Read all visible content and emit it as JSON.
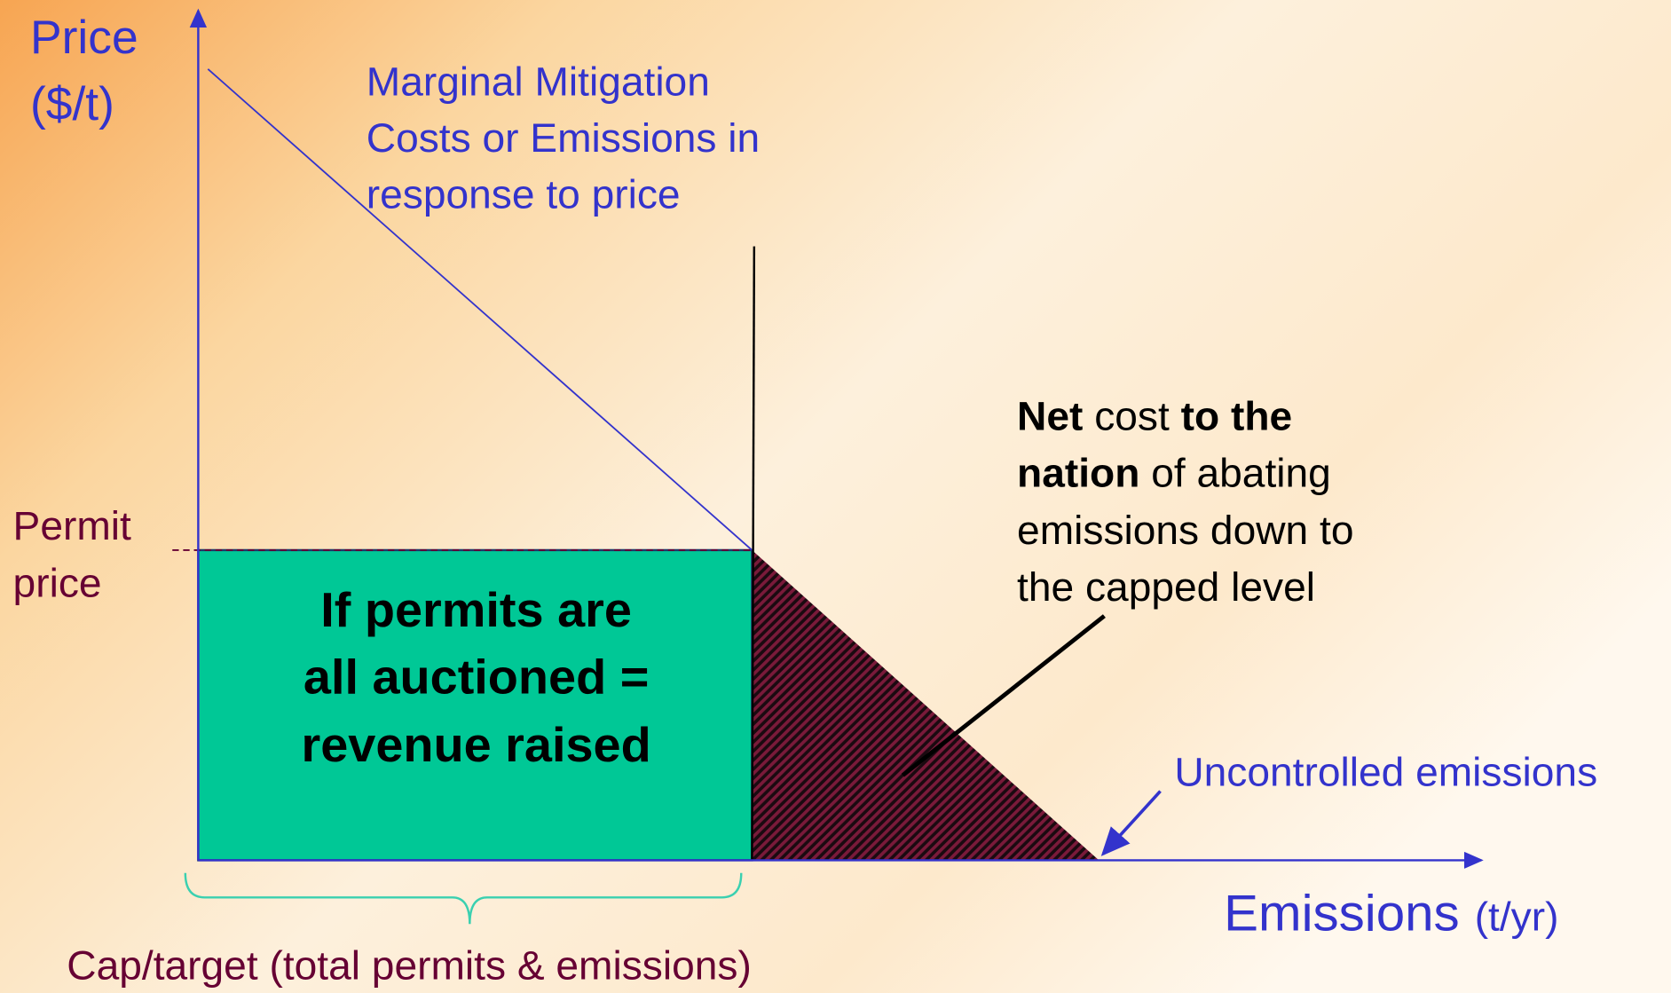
{
  "y_axis": {
    "lines": [
      "Price",
      "($/t)"
    ]
  },
  "curve_label": {
    "lines": [
      "Marginal Mitigation",
      "Costs or Emissions in",
      "response to price"
    ]
  },
  "permit_price": {
    "lines": [
      "Permit",
      "price"
    ]
  },
  "revenue_box": {
    "lines": [
      "If permits are",
      "all auctioned =",
      "revenue raised"
    ]
  },
  "net_cost": {
    "lines": [
      [
        {
          "text": "Net",
          "bold": true
        },
        {
          "text": " cost ",
          "bold": false
        },
        {
          "text": "to the",
          "bold": true
        }
      ],
      [
        {
          "text": "nation",
          "bold": true
        },
        {
          "text": " of abating",
          "bold": false
        }
      ],
      [
        {
          "text": "emissions down to",
          "bold": false
        }
      ],
      [
        {
          "text": "the capped level",
          "bold": false
        }
      ]
    ]
  },
  "uncontrolled": "Uncontrolled emissions",
  "x_axis": {
    "label": "Emissions",
    "unit": "(t/yr)"
  },
  "cap": "Cap/target (total permits & emissions)"
}
